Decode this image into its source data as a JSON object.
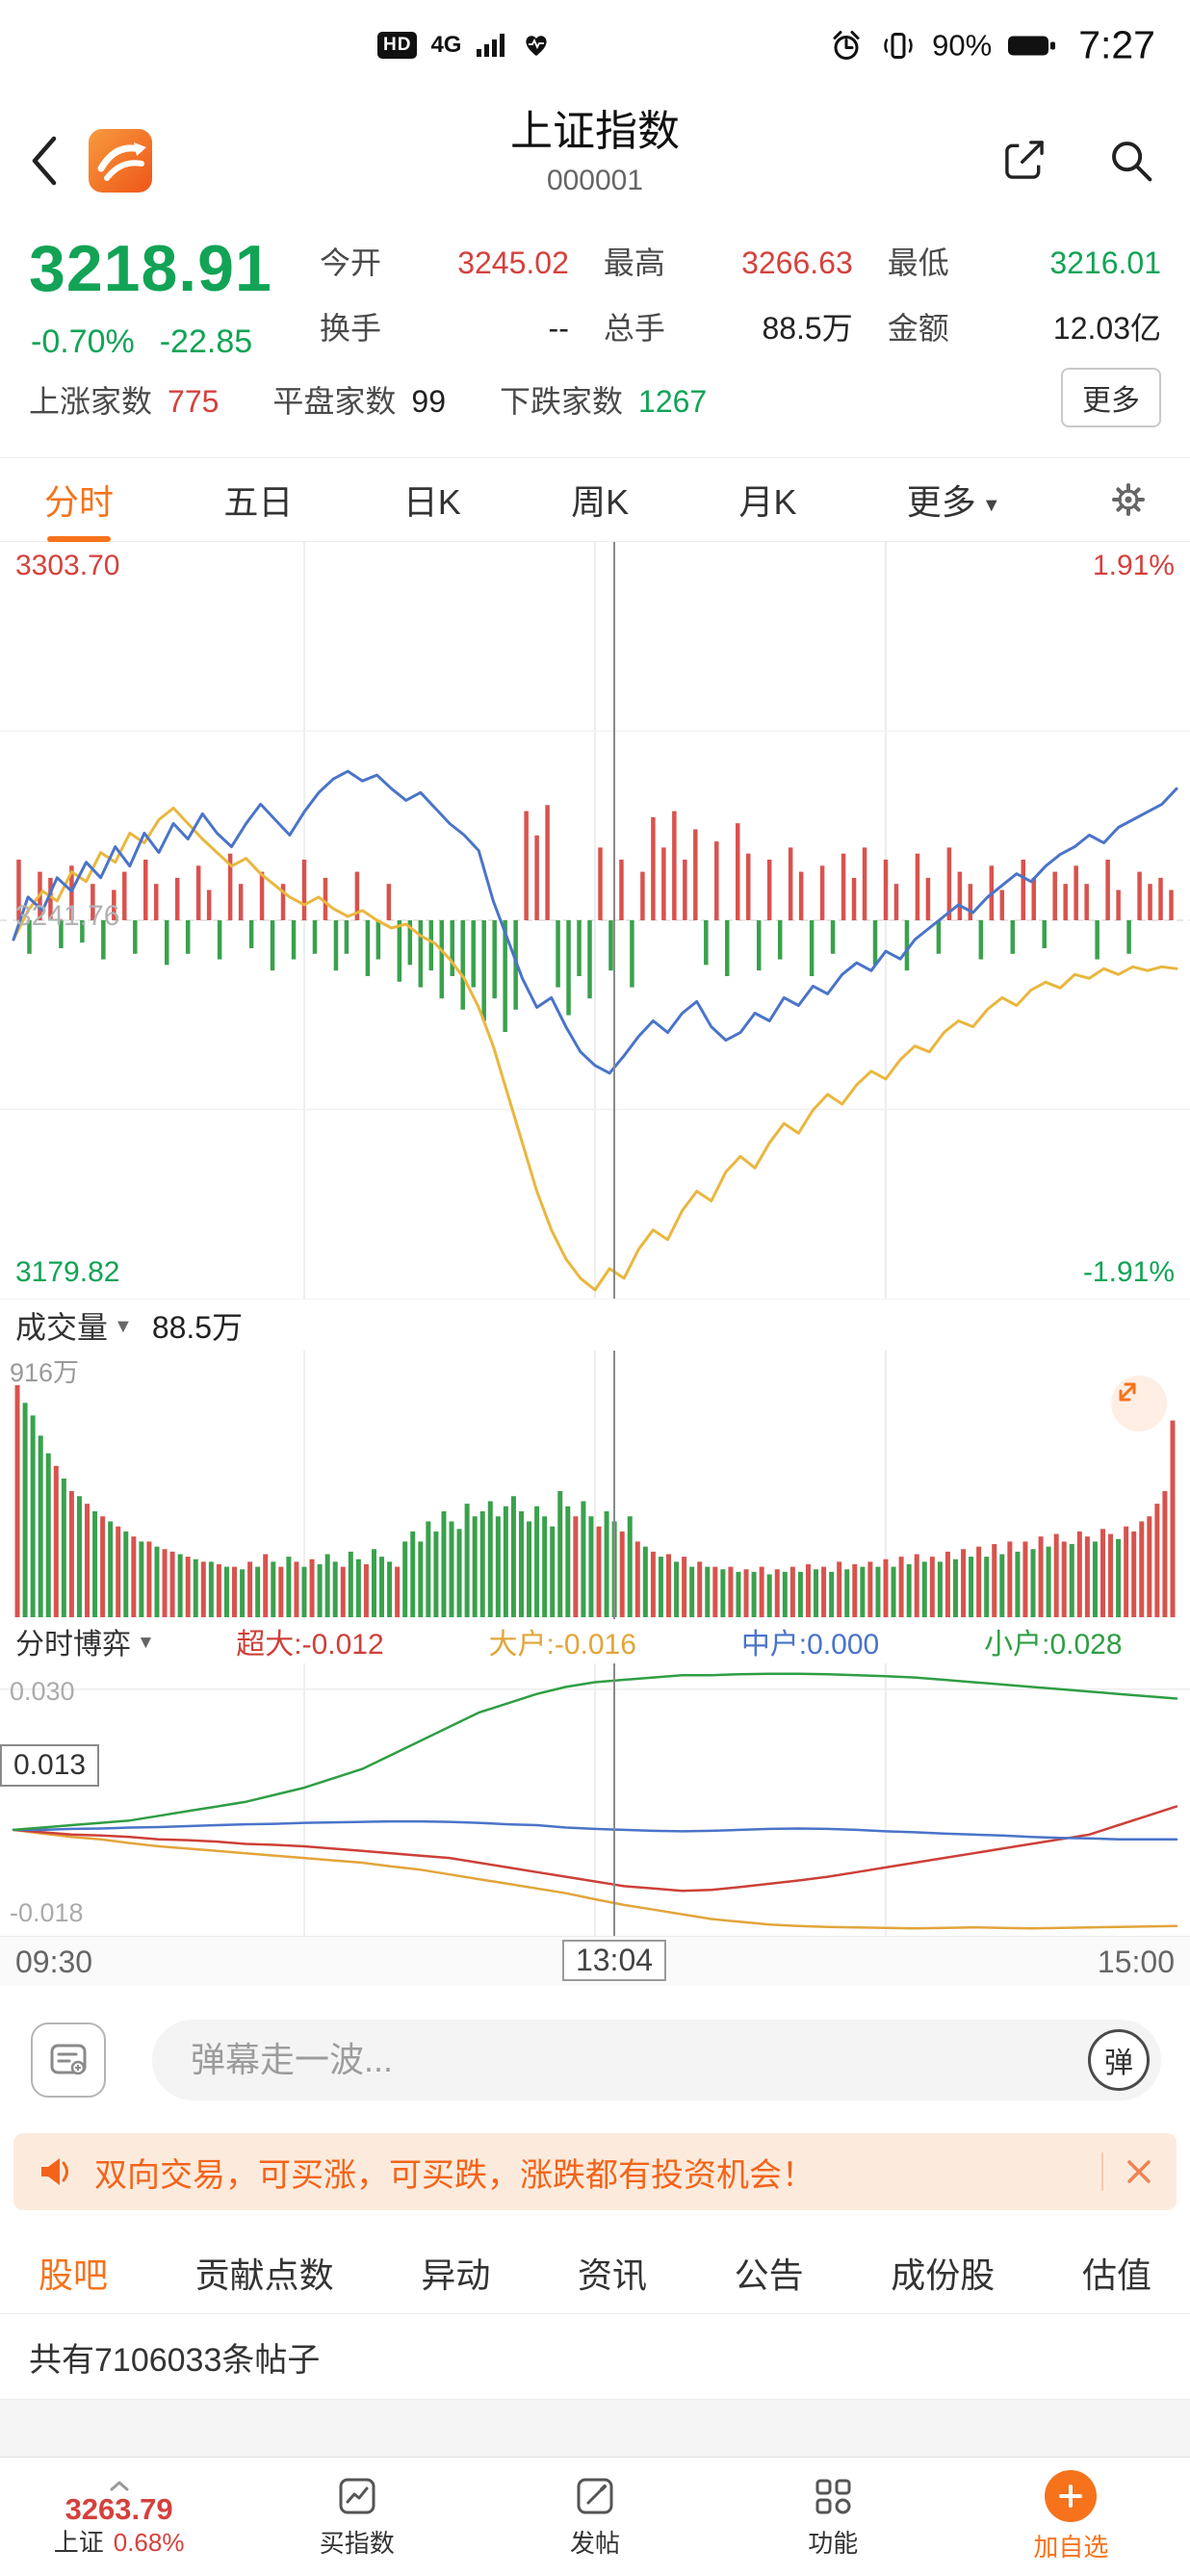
{
  "status_bar": {
    "hd": "HD",
    "network": "4G",
    "battery_pct": "90%",
    "time": "7:27"
  },
  "header": {
    "title": "上证指数",
    "code": "000001"
  },
  "quote": {
    "price": "3218.91",
    "change_pct": "-0.70%",
    "change": "-22.85",
    "stats": [
      {
        "label": "今开",
        "value": "3245.02"
      },
      {
        "label": "最高",
        "value": "3266.63"
      },
      {
        "label": "最低",
        "value": "3216.01"
      },
      {
        "label": "换手",
        "value": "--"
      },
      {
        "label": "总手",
        "value": "88.5万"
      },
      {
        "label": "金额",
        "value": "12.03亿"
      }
    ],
    "breadth": [
      {
        "label": "上涨家数",
        "value": "775"
      },
      {
        "label": "平盘家数",
        "value": "99"
      },
      {
        "label": "下跌家数",
        "value": "1267"
      }
    ],
    "more": "更多"
  },
  "period_tabs": {
    "items": [
      "分时",
      "五日",
      "日K",
      "周K",
      "月K"
    ],
    "more": "更多",
    "active": "分时"
  },
  "time_axis": {
    "open": "09:30",
    "cursor": "13:04",
    "close": "15:00"
  },
  "volume_panel": {
    "dropdown": "成交量",
    "value": "88.5万"
  },
  "game_panel": {
    "dropdown": "分时博弈",
    "items": [
      {
        "text": "超大:-0.012"
      },
      {
        "text": "大户:-0.016"
      },
      {
        "text": "中户:0.000"
      },
      {
        "text": "小户:0.028"
      }
    ]
  },
  "comment_bar": {
    "placeholder": "弹幕走一波...",
    "button": "弹"
  },
  "banner": {
    "text": "双向交易，可买涨，可买跌，涨跌都有投资机会！"
  },
  "community_tabs": {
    "items": [
      "股吧",
      "贡献点数",
      "异动",
      "资讯",
      "公告",
      "成份股",
      "估值"
    ],
    "active": "股吧"
  },
  "posts": {
    "summary": "共有7106033条帖子"
  },
  "bottom_nav": {
    "index_value": "3263.79",
    "index_name": "上证",
    "index_pct": "0.68%",
    "items": [
      "买指数",
      "发帖",
      "功能",
      "加自选"
    ]
  },
  "colors": {
    "red": "#d5413d",
    "green": "#12a356",
    "orange": "#f6731c",
    "blue_line": "#4a74c9",
    "yellow_line": "#e9b73e",
    "bar_red": "#d8534e",
    "bar_green": "#3aa14d",
    "banner_bg": "#fcebdd",
    "banner_text": "#f3641a",
    "game_red": "#cd4038",
    "game_yellow": "#e2a53a",
    "game_blue": "#4a74c9",
    "game_green": "#2f9e44"
  },
  "icons": {
    "hd-badge": "rounded-black-box-HD",
    "signal-bars": "4-ascending-bars",
    "heart-icon": "heart-with-pulse",
    "alarm-icon": "clock-with-bells",
    "vibrate-icon": "phone-with-waves",
    "battery-icon": "filled-battery",
    "back-icon": "chevron-left",
    "app-logo": "orange-square-swoosh",
    "share-icon": "box-arrow-out",
    "search-icon": "magnifier",
    "gear-icon": "gear",
    "dropdown-triangle": "▼",
    "expand-icon": "diagonal-arrows",
    "danmu-settings-icon": "speech-bubble-lines",
    "megaphone-icon": "megaphone",
    "close-icon": "x",
    "chevron-up-icon": "^",
    "buy-index-icon": "chart-in-square",
    "post-icon": "pencil-in-square",
    "grid-icon": "four-tiles",
    "add-icon": "plus-in-circle"
  },
  "chart_data": [
    {
      "type": "line",
      "name": "分时",
      "prev_close": 3241.76,
      "pct_range": 1.91,
      "y_labels": {
        "high": "3303.70",
        "mid": "3241.76",
        "low": "3179.82",
        "pct_high": "1.91%",
        "pct_low": "-1.91%"
      },
      "x_range": [
        "09:30",
        "15:00"
      ],
      "cursor": {
        "time": "13:04",
        "price": "3218.91",
        "pct": "-0.70%",
        "x_frac": 0.517
      },
      "series": [
        {
          "name": "average",
          "color_key": "yellow_line",
          "values_pct": [
            -0.1,
            0.05,
            0.15,
            0.1,
            0.25,
            0.2,
            0.35,
            0.3,
            0.45,
            0.4,
            0.52,
            0.58,
            0.5,
            0.42,
            0.35,
            0.28,
            0.32,
            0.24,
            0.18,
            0.12,
            0.08,
            0.12,
            0.06,
            0.02,
            0.05,
            0.0,
            -0.04,
            -0.02,
            -0.08,
            -0.12,
            -0.2,
            -0.3,
            -0.45,
            -0.65,
            -0.9,
            -1.15,
            -1.4,
            -1.6,
            -1.75,
            -1.85,
            -1.91,
            -1.8,
            -1.85,
            -1.7,
            -1.6,
            -1.65,
            -1.5,
            -1.4,
            -1.45,
            -1.3,
            -1.22,
            -1.28,
            -1.15,
            -1.05,
            -1.1,
            -0.98,
            -0.9,
            -0.95,
            -0.85,
            -0.78,
            -0.82,
            -0.72,
            -0.65,
            -0.68,
            -0.58,
            -0.52,
            -0.55,
            -0.46,
            -0.4,
            -0.44,
            -0.36,
            -0.32,
            -0.35,
            -0.28,
            -0.3,
            -0.25,
            -0.28,
            -0.24,
            -0.26,
            -0.24,
            -0.25
          ]
        },
        {
          "name": "price",
          "color_key": "blue_line",
          "values_pct": [
            -0.1,
            0.12,
            0.05,
            0.22,
            0.15,
            0.3,
            0.22,
            0.38,
            0.28,
            0.45,
            0.35,
            0.5,
            0.42,
            0.55,
            0.45,
            0.38,
            0.5,
            0.6,
            0.52,
            0.44,
            0.56,
            0.66,
            0.73,
            0.77,
            0.72,
            0.75,
            0.68,
            0.62,
            0.66,
            0.58,
            0.5,
            0.44,
            0.36,
            0.1,
            -0.1,
            -0.3,
            -0.45,
            -0.4,
            -0.55,
            -0.68,
            -0.75,
            -0.79,
            -0.7,
            -0.6,
            -0.52,
            -0.58,
            -0.48,
            -0.42,
            -0.55,
            -0.62,
            -0.58,
            -0.48,
            -0.52,
            -0.4,
            -0.44,
            -0.34,
            -0.38,
            -0.28,
            -0.22,
            -0.26,
            -0.16,
            -0.2,
            -0.1,
            -0.04,
            0.02,
            0.08,
            0.04,
            0.12,
            0.18,
            0.24,
            0.2,
            0.28,
            0.34,
            0.38,
            0.44,
            0.4,
            0.48,
            0.52,
            0.56,
            0.6,
            0.68
          ]
        }
      ],
      "minute_bars": [
        0.5,
        -0.3,
        0.4,
        0.35,
        -0.25,
        0.45,
        -0.2,
        0.3,
        -0.35,
        0.25,
        0.4,
        -0.3,
        0.5,
        0.3,
        -0.4,
        0.35,
        -0.3,
        0.45,
        0.25,
        -0.35,
        0.55,
        0.3,
        -0.25,
        0.4,
        -0.45,
        0.3,
        -0.35,
        0.5,
        -0.3,
        0.35,
        -0.45,
        -0.3,
        0.4,
        -0.5,
        -0.35,
        0.3,
        -0.55,
        -0.4,
        -0.6,
        -0.45,
        -0.7,
        -0.5,
        -0.8,
        -0.6,
        -0.9,
        -0.7,
        -1.0,
        -0.8,
        0.9,
        0.7,
        0.95,
        -0.6,
        -0.85,
        -0.5,
        -0.7,
        0.6,
        -0.45,
        0.5,
        -0.6,
        0.4,
        0.85,
        0.6,
        0.9,
        0.5,
        0.75,
        -0.4,
        0.65,
        -0.5,
        0.8,
        0.55,
        -0.45,
        0.5,
        -0.35,
        0.6,
        0.4,
        -0.5,
        0.45,
        -0.3,
        0.55,
        0.35,
        0.6,
        -0.4,
        0.5,
        0.3,
        -0.45,
        0.55,
        0.35,
        -0.3,
        0.6,
        0.4,
        0.3,
        -0.35,
        0.45,
        0.25,
        -0.3,
        0.5,
        0.35,
        -0.25,
        0.4,
        0.3,
        0.45,
        0.3,
        -0.35,
        0.5,
        0.25,
        -0.3,
        0.4,
        0.3,
        0.35,
        0.25
      ]
    },
    {
      "type": "bar",
      "name": "成交量",
      "axis_max": "916万",
      "total": "88.5万",
      "values": [
        0.92,
        -0.85,
        -0.8,
        -0.72,
        -0.65,
        0.6,
        -0.55,
        0.5,
        -0.48,
        0.45,
        -0.42,
        0.4,
        -0.38,
        0.36,
        -0.34,
        0.32,
        -0.3,
        0.3,
        -0.28,
        0.27,
        0.26,
        -0.25,
        0.24,
        -0.23,
        0.22,
        -0.22,
        0.21,
        -0.2,
        0.2,
        -0.19,
        0.22,
        -0.2,
        0.25,
        -0.22,
        0.2,
        -0.24,
        0.22,
        -0.2,
        0.23,
        -0.21,
        -0.25,
        -0.22,
        0.2,
        -0.26,
        -0.23,
        0.21,
        -0.27,
        -0.24,
        -0.22,
        0.2,
        -0.3,
        -0.34,
        -0.3,
        -0.38,
        -0.34,
        -0.42,
        -0.38,
        -0.35,
        -0.45,
        -0.4,
        -0.42,
        -0.46,
        -0.4,
        -0.44,
        -0.48,
        -0.42,
        -0.38,
        -0.44,
        -0.4,
        -0.36,
        -0.5,
        -0.44,
        0.4,
        -0.46,
        -0.4,
        0.36,
        -0.42,
        -0.38,
        0.34,
        -0.4,
        0.3,
        -0.28,
        0.26,
        -0.24,
        0.25,
        -0.22,
        0.24,
        -0.2,
        0.22,
        -0.2,
        0.2,
        -0.19,
        0.2,
        -0.18,
        0.19,
        -0.18,
        0.2,
        -0.17,
        0.19,
        -0.18,
        0.2,
        -0.18,
        0.21,
        -0.19,
        0.2,
        -0.18,
        0.22,
        -0.19,
        0.21,
        -0.2,
        0.22,
        -0.2,
        0.23,
        -0.2,
        0.24,
        -0.21,
        0.25,
        -0.22,
        0.24,
        -0.22,
        0.26,
        -0.23,
        0.27,
        -0.24,
        0.28,
        -0.24,
        0.29,
        -0.25,
        0.3,
        -0.26,
        0.3,
        -0.27,
        0.32,
        -0.28,
        0.33,
        0.3,
        -0.29,
        0.34,
        0.32,
        -0.3,
        0.35,
        0.33,
        -0.31,
        0.36,
        0.34,
        0.38,
        0.4,
        0.45,
        0.5,
        0.78
      ]
    },
    {
      "type": "line",
      "name": "分时博弈",
      "ylim": [
        -0.0226,
        0.0355
      ],
      "y_labels": {
        "top": "0.030",
        "box": "0.013",
        "bottom": "-0.018"
      },
      "series": [
        {
          "name": "大户",
          "color_key": "game_yellow",
          "values": [
            0,
            -0.0008,
            -0.0015,
            -0.002,
            -0.0028,
            -0.0035,
            -0.004,
            -0.0045,
            -0.005,
            -0.0055,
            -0.006,
            -0.0065,
            -0.007,
            -0.0078,
            -0.0085,
            -0.0095,
            -0.0105,
            -0.0115,
            -0.0125,
            -0.0135,
            -0.0148,
            -0.016,
            -0.017,
            -0.018,
            -0.019,
            -0.0196,
            -0.0202,
            -0.0205,
            -0.0207,
            -0.0208,
            -0.0209,
            -0.021,
            -0.0209,
            -0.0208,
            -0.0209,
            -0.021,
            -0.0209,
            -0.0208,
            -0.0207,
            -0.0206,
            -0.0205
          ]
        },
        {
          "name": "超大",
          "color_key": "game_red",
          "values": [
            0,
            -0.0005,
            -0.001,
            -0.0012,
            -0.0015,
            -0.002,
            -0.0022,
            -0.0025,
            -0.003,
            -0.0032,
            -0.0035,
            -0.004,
            -0.0045,
            -0.005,
            -0.0055,
            -0.006,
            -0.007,
            -0.008,
            -0.009,
            -0.01,
            -0.011,
            -0.012,
            -0.0125,
            -0.013,
            -0.0128,
            -0.0122,
            -0.0115,
            -0.0108,
            -0.01,
            -0.009,
            -0.008,
            -0.007,
            -0.006,
            -0.005,
            -0.004,
            -0.003,
            -0.002,
            -0.001,
            0.001,
            0.003,
            0.005
          ]
        },
        {
          "name": "中户",
          "color_key": "game_blue",
          "values": [
            0,
            0,
            0.0002,
            0.0003,
            0.0005,
            0.0006,
            0.0008,
            0.001,
            0.0012,
            0.0013,
            0.0015,
            0.0016,
            0.0017,
            0.0018,
            0.0018,
            0.0017,
            0.0015,
            0.0012,
            0.001,
            0.0005,
            0.0002,
            0,
            -0.0002,
            -0.0003,
            -0.0002,
            0,
            0.0002,
            0.0003,
            0.0002,
            0,
            -0.0003,
            -0.0005,
            -0.0008,
            -0.001,
            -0.0012,
            -0.0015,
            -0.0017,
            -0.0018,
            -0.002,
            -0.002,
            -0.002
          ]
        },
        {
          "name": "小户",
          "color_key": "game_green",
          "values": [
            0,
            0.0005,
            0.001,
            0.0015,
            0.002,
            0.003,
            0.004,
            0.005,
            0.006,
            0.0075,
            0.009,
            0.011,
            0.013,
            0.016,
            0.019,
            0.022,
            0.025,
            0.027,
            0.029,
            0.0305,
            0.0315,
            0.032,
            0.0325,
            0.033,
            0.033,
            0.0332,
            0.0333,
            0.0333,
            0.0332,
            0.033,
            0.0328,
            0.0325,
            0.032,
            0.0315,
            0.031,
            0.0305,
            0.03,
            0.0295,
            0.029,
            0.0285,
            0.028
          ]
        }
      ]
    }
  ]
}
